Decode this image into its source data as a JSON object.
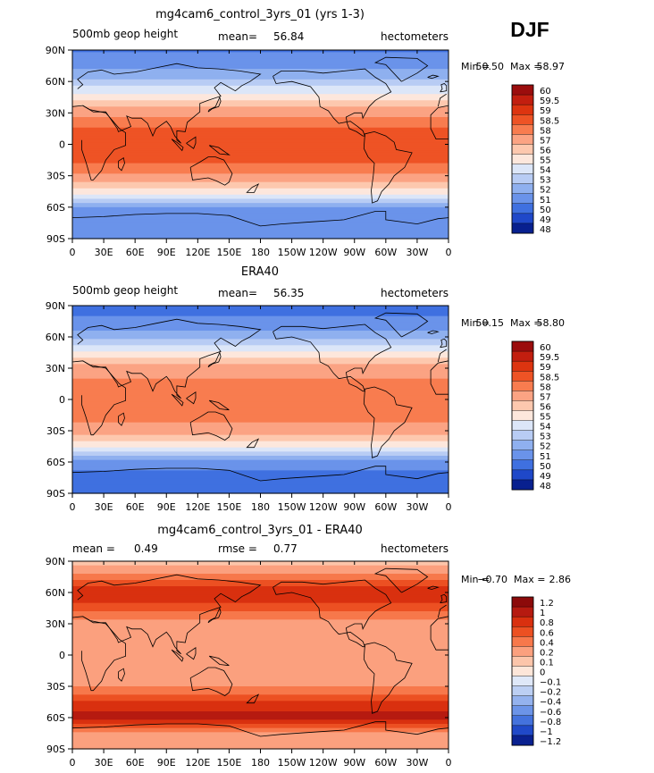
{
  "season": "DJF",
  "x_ticks": [
    "0",
    "30E",
    "60E",
    "90E",
    "120E",
    "150E",
    "180",
    "150W",
    "120W",
    "90W",
    "60W",
    "30W",
    "0"
  ],
  "y_ticks": [
    "90N",
    "60N",
    "30N",
    "0",
    "30S",
    "60S",
    "90S"
  ],
  "chart_data": [
    {
      "type": "heatmap",
      "title": "mg4cam6_control_3yrs_01 (yrs 1-3)",
      "left_label": "500mb geop height",
      "stats": [
        {
          "label": "mean=",
          "value": "56.84"
        }
      ],
      "units": "hectometers",
      "min_label": "Min =",
      "min_value": "50.50",
      "max_label": "Max =",
      "max_value": "58.97",
      "xlim": [
        0,
        360
      ],
      "ylim": [
        -90,
        90
      ],
      "levels": [
        "60",
        "59.5",
        "59",
        "58.5",
        "58",
        "57",
        "56",
        "55",
        "54",
        "53",
        "52",
        "51",
        "50",
        "49",
        "48"
      ],
      "colors": [
        "#9b0d0d",
        "#c21e0f",
        "#dd3410",
        "#ee5325",
        "#f87c4f",
        "#fba383",
        "#fdc8ae",
        "#fde7dc",
        "#dce6f8",
        "#b8ccf4",
        "#8fb0ef",
        "#6a93ea",
        "#3f70e0",
        "#1f48c9",
        "#08208f"
      ],
      "profile": {
        "lat": [
          90,
          75,
          60,
          45,
          30,
          15,
          0,
          -15,
          -30,
          -45,
          -60,
          -75,
          -90
        ],
        "value": [
          50.8,
          51.8,
          53.2,
          55.6,
          57.8,
          58.5,
          58.7,
          58.6,
          57.9,
          55.6,
          52.0,
          51.1,
          51.0
        ]
      }
    },
    {
      "type": "heatmap",
      "title": "ERA40",
      "left_label": "500mb geop height",
      "stats": [
        {
          "label": "mean=",
          "value": "56.35"
        }
      ],
      "units": "hectometers",
      "min_label": "Min =",
      "min_value": "50.15",
      "max_label": "Max =",
      "max_value": "58.80",
      "xlim": [
        0,
        360
      ],
      "ylim": [
        -90,
        90
      ],
      "levels": [
        "60",
        "59.5",
        "59",
        "58.5",
        "58",
        "57",
        "56",
        "55",
        "54",
        "53",
        "52",
        "51",
        "50",
        "49",
        "48"
      ],
      "colors": [
        "#9b0d0d",
        "#c21e0f",
        "#dd3410",
        "#ee5325",
        "#f87c4f",
        "#fba383",
        "#fdc8ae",
        "#fde7dc",
        "#dce6f8",
        "#b8ccf4",
        "#8fb0ef",
        "#6a93ea",
        "#3f70e0",
        "#1f48c9",
        "#08208f"
      ],
      "profile": {
        "lat": [
          90,
          75,
          60,
          45,
          30,
          15,
          0,
          -15,
          -30,
          -45,
          -60,
          -75,
          -90
        ],
        "value": [
          50.5,
          51.3,
          52.6,
          55.1,
          57.5,
          58.3,
          58.5,
          58.4,
          57.6,
          55.1,
          51.4,
          50.7,
          50.6
        ]
      }
    },
    {
      "type": "heatmap",
      "title": "mg4cam6_control_3yrs_01 - ERA40",
      "left_label": "",
      "stats": [
        {
          "label": "mean =",
          "value": "0.49"
        },
        {
          "label": "rmse =",
          "value": "0.77"
        }
      ],
      "units": "hectometers",
      "min_label": "Min =",
      "min_value": "−0.70",
      "max_label": "Max =",
      "max_value": "2.86",
      "xlim": [
        0,
        360
      ],
      "ylim": [
        -90,
        90
      ],
      "levels": [
        "1.2",
        "1",
        "0.8",
        "0.6",
        "0.4",
        "0.2",
        "0.1",
        "0",
        "−0.1",
        "−0.2",
        "−0.4",
        "−0.6",
        "−0.8",
        "−1",
        "−1.2"
      ],
      "colors": [
        "#8c0a0a",
        "#b61a10",
        "#d9300f",
        "#ec5022",
        "#f7784b",
        "#fba07e",
        "#fcc5aa",
        "#fde6d9",
        "#dfe8f8",
        "#bccff3",
        "#94b2ee",
        "#6c94e8",
        "#4472dd",
        "#2049c8",
        "#0a2190"
      ],
      "profile": {
        "lat": [
          90,
          75,
          60,
          45,
          30,
          15,
          0,
          -15,
          -30,
          -45,
          -60,
          -75,
          -90
        ],
        "value": [
          0.1,
          0.5,
          1.0,
          0.7,
          0.3,
          0.2,
          0.2,
          0.25,
          0.4,
          0.8,
          1.1,
          0.3,
          0.2
        ]
      }
    }
  ]
}
